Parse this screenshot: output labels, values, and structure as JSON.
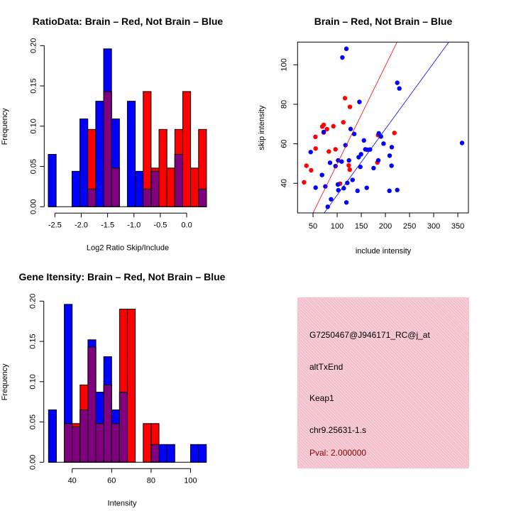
{
  "colors": {
    "brain": "#ff0000",
    "not_brain": "#0000ff",
    "overlap": "#800080",
    "panel_bg": "#f3bfcb",
    "pval": "#8b0000"
  },
  "chart_data": [
    {
      "type": "bar",
      "subtype": "overlaid-histogram",
      "title": "RatioData: Brain – Red, Not Brain – Blue",
      "xlabel": "Log2 Ratio Skip/Include",
      "ylabel": "Frequency",
      "bin_start": -2.625,
      "bin_width": 0.15,
      "series": [
        {
          "name": "Not Brain",
          "color": "blue",
          "values": [
            0.065,
            0,
            0,
            0.044,
            0.109,
            0.022,
            0.131,
            0.196,
            0.109,
            0,
            0.131,
            0.044,
            0.022,
            0.044,
            0,
            0,
            0.065,
            0,
            0,
            0.022
          ]
        },
        {
          "name": "Brain",
          "color": "red",
          "values": [
            0,
            0,
            0,
            0,
            0,
            0.096,
            0,
            0.143,
            0.048,
            0,
            0,
            0,
            0.143,
            0.048,
            0.096,
            0.048,
            0.096,
            0.143,
            0.048,
            0.096
          ]
        }
      ],
      "xticks": [
        -2.5,
        -2.0,
        -1.5,
        -1.0,
        -0.5,
        0.0
      ],
      "xtick_labels": [
        "-2.5",
        "-2.0",
        "-1.5",
        "-1.0",
        "-0.5",
        "0.0"
      ],
      "yticks": [
        0,
        0.05,
        0.1,
        0.15,
        0.2
      ],
      "ytick_labels": [
        "0.00",
        "0.05",
        "0.10",
        "0.15",
        "0.20"
      ],
      "ylim": [
        0,
        0.2
      ]
    },
    {
      "type": "scatter",
      "title": "Brain – Red, Not Brain – Blue",
      "xlabel": "include intensity",
      "ylabel": "skip intensity",
      "xlim": [
        18,
        372
      ],
      "ylim": [
        25,
        111.5
      ],
      "xticks": [
        50,
        100,
        150,
        200,
        250,
        300,
        350
      ],
      "xtick_labels": [
        "50",
        "100",
        "150",
        "200",
        "250",
        "300",
        "350"
      ],
      "yticks": [
        40,
        60,
        80,
        100
      ],
      "ytick_labels": [
        "40",
        "60",
        "80",
        "100"
      ],
      "series": [
        {
          "name": "Brain",
          "color": "red",
          "fit": {
            "slope": 0.497,
            "intercept": 0.1
          },
          "points": [
            [
              31.4,
              40.5
            ],
            [
              36.3,
              48.9
            ],
            [
              46.1,
              46.6
            ],
            [
              54.9,
              63.5
            ],
            [
              55.4,
              57.6
            ],
            [
              72.1,
              65.7
            ],
            [
              72.1,
              69.6
            ],
            [
              69.1,
              68.7
            ],
            [
              78.9,
              67.4
            ],
            [
              82.8,
              56.1
            ],
            [
              92.2,
              68.9
            ],
            [
              96.6,
              57.2
            ],
            [
              105.9,
              39.8
            ],
            [
              112.7,
              70.9
            ],
            [
              116.2,
              83.1
            ],
            [
              126.5,
              78.7
            ],
            [
              124.0,
              49.1
            ],
            [
              126.0,
              46.9
            ],
            [
              183.3,
              50.5
            ],
            [
              184.8,
              64.4
            ],
            [
              218.6,
              65.5
            ]
          ]
        },
        {
          "name": "Not Brain",
          "color": "blue",
          "fit": {
            "slope": 0.335,
            "intercept": 0.5
          },
          "points": [
            [
              45.1,
              55.8
            ],
            [
              55.4,
              37.8
            ],
            [
              68.6,
              44.2
            ],
            [
              72.1,
              66.0
            ],
            [
              75.5,
              38.4
            ],
            [
              80.4,
              28.1
            ],
            [
              85.3,
              50.4
            ],
            [
              87.3,
              31.9
            ],
            [
              96.6,
              48.7
            ],
            [
              102.0,
              51.6
            ],
            [
              102.5,
              36.5
            ],
            [
              101.5,
              39.4
            ],
            [
              109.3,
              51.0
            ],
            [
              110.8,
              103.7
            ],
            [
              113.7,
              37.5
            ],
            [
              117.2,
              59.3
            ],
            [
              119.1,
              108.1
            ],
            [
              119.1,
              30.3
            ],
            [
              121.1,
              40.2
            ],
            [
              124.5,
              51.6
            ],
            [
              127.9,
              67.5
            ],
            [
              131.9,
              41.7
            ],
            [
              135.3,
              65.0
            ],
            [
              142.2,
              36.2
            ],
            [
              144.6,
              53.2
            ],
            [
              146.1,
              81.2
            ],
            [
              148.0,
              48.3
            ],
            [
              149.5,
              54.7
            ],
            [
              155.4,
              61.7
            ],
            [
              158.3,
              57.2
            ],
            [
              161.3,
              37.7
            ],
            [
              162.3,
              57.0
            ],
            [
              168.1,
              57.1
            ],
            [
              175.5,
              47.7
            ],
            [
              185.3,
              51.6
            ],
            [
              186.3,
              65.3
            ],
            [
              190.7,
              63.7
            ],
            [
              196.1,
              60.1
            ],
            [
              208.3,
              36.2
            ],
            [
              208.8,
              54.0
            ],
            [
              212.7,
              48.9
            ],
            [
              213.2,
              58.3
            ],
            [
              224.5,
              90.9
            ],
            [
              224.5,
              36.6
            ],
            [
              228.9,
              88.0
            ],
            [
              358.8,
              60.4
            ]
          ]
        }
      ]
    },
    {
      "type": "bar",
      "subtype": "overlaid-histogram",
      "title": "Gene Itensity: Brain – Red, Not Brain – Blue",
      "xlabel": "Intensity",
      "ylabel": "Frequency",
      "bin_start": 28,
      "bin_width": 4,
      "series": [
        {
          "name": "Not Brain",
          "color": "blue",
          "values": [
            0.065,
            0,
            0.196,
            0.044,
            0.065,
            0.152,
            0.087,
            0.131,
            0.065,
            0.087,
            0,
            0,
            0,
            0.022,
            0.022,
            0.022,
            0,
            0,
            0.022,
            0.022
          ]
        },
        {
          "name": "Brain",
          "color": "red",
          "values": [
            0,
            0,
            0.048,
            0.048,
            0.096,
            0.143,
            0.048,
            0.096,
            0.048,
            0.19,
            0.19,
            0,
            0.048,
            0.048,
            0,
            0,
            0,
            0,
            0,
            0
          ]
        }
      ],
      "xticks": [
        40,
        60,
        80,
        100
      ],
      "xtick_labels": [
        "40",
        "60",
        "80",
        "100"
      ],
      "yticks": [
        0,
        0.05,
        0.1,
        0.15,
        0.2
      ],
      "ytick_labels": [
        "0.00",
        "0.05",
        "0.10",
        "0.15",
        "0.20"
      ],
      "ylim": [
        0,
        0.2
      ]
    }
  ],
  "info_panel": {
    "probe_id": "G7250467@J946171_RC@j_at",
    "event_type": "altTxEnd",
    "gene": "Keap1",
    "location": "chr9.25631-1.s",
    "pval": "Pval: 2.000000"
  }
}
